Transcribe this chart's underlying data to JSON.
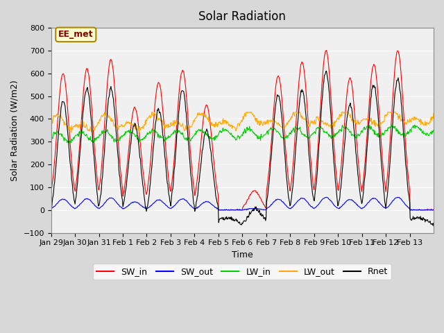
{
  "title": "Solar Radiation",
  "xlabel": "Time",
  "ylabel": "Solar Radiation (W/m2)",
  "annotation": "EE_met",
  "ylim": [
    -100,
    800
  ],
  "yticks": [
    -100,
    0,
    100,
    200,
    300,
    400,
    500,
    600,
    700,
    800
  ],
  "colors": {
    "SW_in": "#ff0000",
    "SW_out": "#0000ff",
    "LW_in": "#00cc00",
    "LW_out": "#ffaa00",
    "Rnet": "#000000"
  },
  "legend_labels": [
    "SW_in",
    "SW_out",
    "LW_in",
    "LW_out",
    "Rnet"
  ],
  "fig_bg_color": "#d8d8d8",
  "plot_bg_color": "#f0f0f0",
  "day_labels": [
    "Jan 29",
    "Jan 30",
    "Jan 31",
    "Feb 1",
    "Feb 2",
    "Feb 3",
    "Feb 4",
    "Feb 5",
    "Feb 6",
    "Feb 7",
    "Feb 8",
    "Feb 9",
    "Feb 10",
    "Feb 11",
    "Feb 12",
    "Feb 13"
  ],
  "peaks_SW": [
    600,
    620,
    660,
    450,
    560,
    615,
    460,
    0,
    85,
    590,
    650,
    700,
    580,
    640,
    700,
    0
  ],
  "n_days": 16,
  "ppd": 48
}
